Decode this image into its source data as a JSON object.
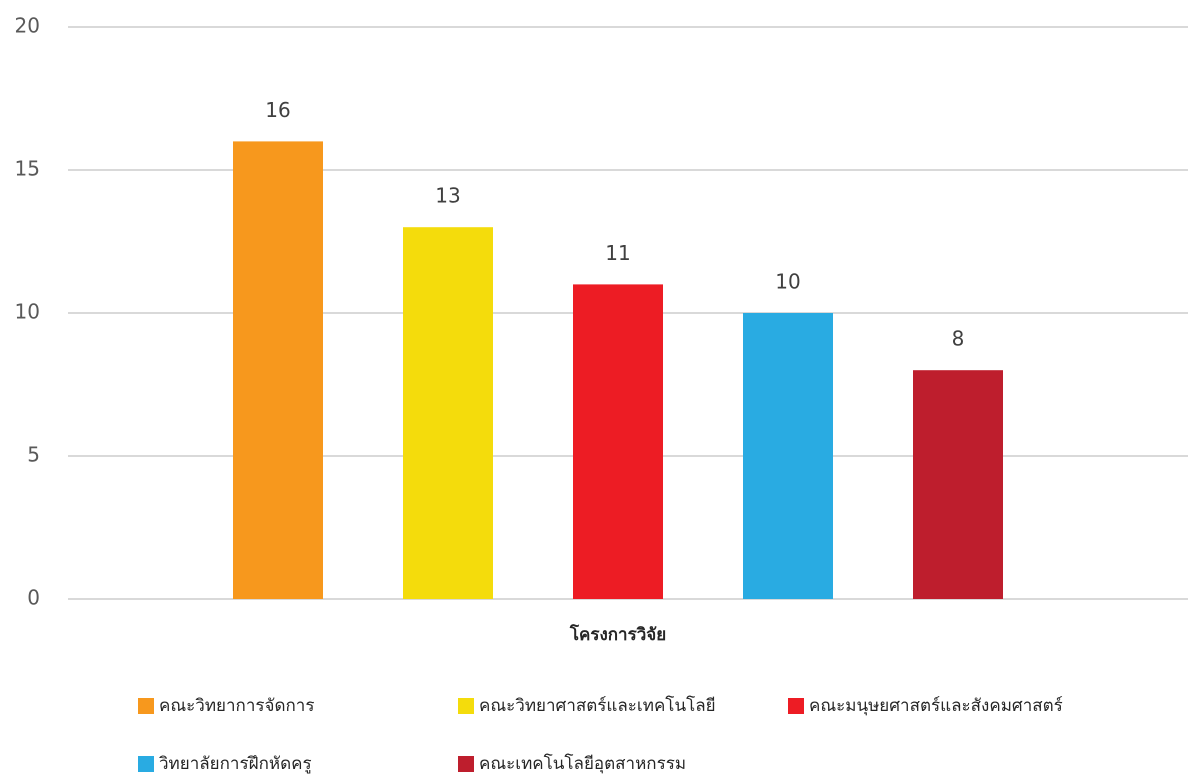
{
  "chart_data": {
    "type": "bar",
    "categories": [
      "โครงการวิจัย"
    ],
    "series": [
      {
        "name": "คณะวิทยาการจัดการ",
        "color": "#f7981d",
        "values": [
          16
        ]
      },
      {
        "name": "คณะวิทยาศาสตร์และเทคโนโลยี",
        "color": "#f4dc0c",
        "values": [
          13
        ]
      },
      {
        "name": "คณะมนุษยศาสตร์และสังคมศาสตร์",
        "color": "#ed1c24",
        "values": [
          11
        ]
      },
      {
        "name": "วิทยาลัยการฝึกหัดครู",
        "color": "#29abe2",
        "values": [
          10
        ]
      },
      {
        "name": "คณะเทคโนโลยีอุตสาหกรรม",
        "color": "#be1e2d",
        "values": [
          8
        ]
      }
    ],
    "ylim": [
      0,
      20
    ],
    "yticks": [
      0,
      5,
      10,
      15,
      20
    ],
    "grid": true,
    "legend": "bottom"
  }
}
